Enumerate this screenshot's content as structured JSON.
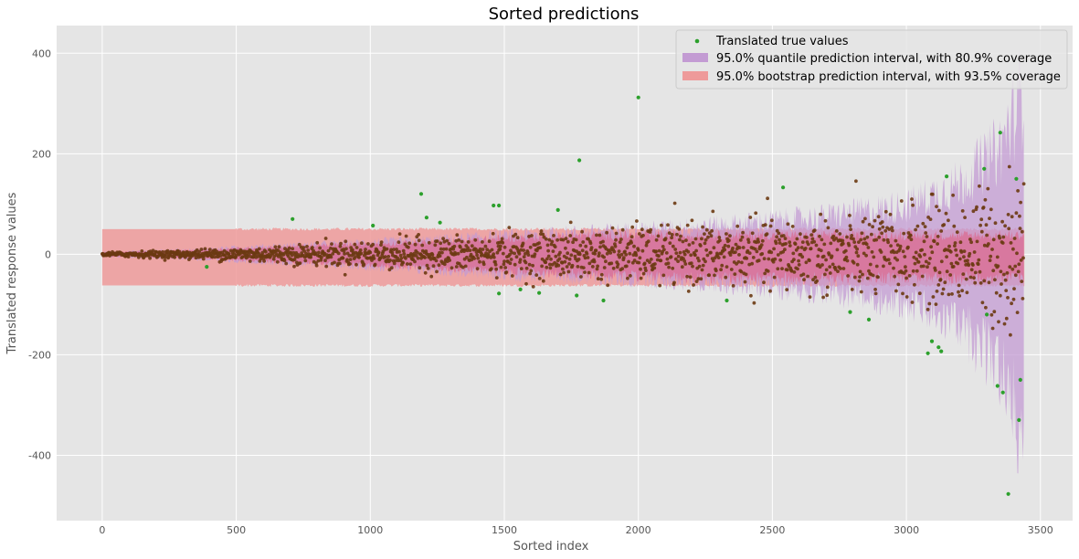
{
  "chart_data": {
    "type": "scatter",
    "title": "Sorted predictions",
    "xlabel": "Sorted index",
    "ylabel": "Translated response values",
    "xlim": [
      -170,
      3620
    ],
    "ylim": [
      -530,
      455
    ],
    "xticks": [
      0,
      500,
      1000,
      1500,
      2000,
      2500,
      3000,
      3500
    ],
    "yticks": [
      -400,
      -200,
      0,
      200,
      400
    ],
    "grid": true,
    "legend_position": "upper-right",
    "n_points": 3440,
    "colors": {
      "background": "#e5e5e5",
      "grid": "#ffffff",
      "points": "#2ca02c",
      "points_dense": "#6b3a12",
      "quantile_band": "#c39bd3",
      "bootstrap_band": "#ee9a9a",
      "overlap_band": "#e05a7e"
    },
    "legend": [
      {
        "key": "points",
        "label": "Translated true values"
      },
      {
        "key": "quantile",
        "label": "95.0% quantile prediction interval, with 80.9% coverage"
      },
      {
        "key": "bootstrap",
        "label": "95.0% bootstrap prediction interval, with 93.5% coverage"
      }
    ],
    "series": [
      {
        "name": "95.0% bootstrap prediction interval, with 93.5% coverage",
        "kind": "band",
        "x": [
          0,
          500,
          1000,
          1500,
          2000,
          2500,
          3000,
          3300,
          3440
        ],
        "lower": [
          -62,
          -62,
          -62,
          -62,
          -62,
          -62,
          -62,
          -62,
          -62
        ],
        "upper": [
          50,
          50,
          50,
          50,
          50,
          50,
          50,
          50,
          50
        ]
      },
      {
        "name": "95.0% quantile prediction interval, with 80.9% coverage",
        "kind": "band",
        "x": [
          0,
          300,
          600,
          900,
          1200,
          1500,
          1800,
          2100,
          2400,
          2700,
          3000,
          3200,
          3350,
          3440
        ],
        "lower": [
          -5,
          -10,
          -18,
          -25,
          -35,
          -45,
          -52,
          -60,
          -70,
          -85,
          -110,
          -160,
          -260,
          -420
        ],
        "upper": [
          5,
          10,
          18,
          25,
          32,
          42,
          50,
          58,
          70,
          85,
          110,
          160,
          240,
          380
        ]
      },
      {
        "name": "Translated true values",
        "kind": "points",
        "spread_x": [
          0,
          300,
          600,
          900,
          1200,
          1500,
          1800,
          2100,
          2400,
          2700,
          3000,
          3200,
          3350,
          3440
        ],
        "spread_sd": [
          2,
          4,
          8,
          12,
          16,
          20,
          24,
          28,
          32,
          38,
          45,
          55,
          70,
          90
        ],
        "outliers": [
          {
            "x": 2000,
            "y": 312
          },
          {
            "x": 1780,
            "y": 187
          },
          {
            "x": 1190,
            "y": 120
          },
          {
            "x": 2540,
            "y": 133
          },
          {
            "x": 1460,
            "y": 97
          },
          {
            "x": 1480,
            "y": 97
          },
          {
            "x": 3350,
            "y": 242
          },
          {
            "x": 3380,
            "y": -477
          },
          {
            "x": 3340,
            "y": -262
          },
          {
            "x": 3360,
            "y": -275
          },
          {
            "x": 3080,
            "y": -197
          },
          {
            "x": 3120,
            "y": -185
          },
          {
            "x": 3130,
            "y": -193
          },
          {
            "x": 3095,
            "y": -173
          },
          {
            "x": 710,
            "y": 70
          },
          {
            "x": 1210,
            "y": 73
          },
          {
            "x": 1700,
            "y": 88
          },
          {
            "x": 1480,
            "y": -78
          },
          {
            "x": 1770,
            "y": -82
          },
          {
            "x": 1870,
            "y": -92
          },
          {
            "x": 1630,
            "y": -77
          },
          {
            "x": 1560,
            "y": -70
          },
          {
            "x": 2860,
            "y": -130
          },
          {
            "x": 2790,
            "y": -115
          },
          {
            "x": 3420,
            "y": -330
          },
          {
            "x": 3425,
            "y": -250
          },
          {
            "x": 390,
            "y": -25
          },
          {
            "x": 3150,
            "y": 155
          },
          {
            "x": 3410,
            "y": 150
          },
          {
            "x": 3300,
            "y": -120
          },
          {
            "x": 3290,
            "y": 170
          },
          {
            "x": 1260,
            "y": 63
          },
          {
            "x": 1010,
            "y": 57
          },
          {
            "x": 2330,
            "y": -92
          }
        ]
      }
    ]
  }
}
